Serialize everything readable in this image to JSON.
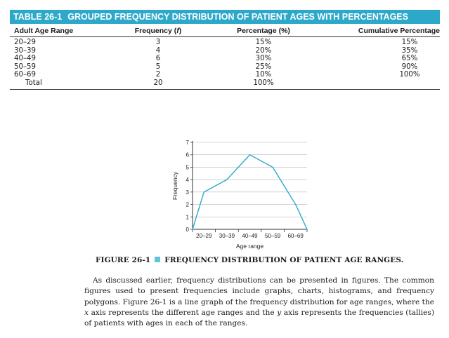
{
  "table": {
    "number": "TABLE 26-1",
    "title": "GROUPED FREQUENCY DISTRIBUTION OF PATIENT AGES WITH PERCENTAGES",
    "columns": [
      "Adult Age Range",
      "Frequency (f)",
      "Percentage (%)",
      "Cumulative Percentage"
    ],
    "rows": [
      {
        "range": "20–29",
        "freq": "3",
        "pct": "15%",
        "cum": "15%"
      },
      {
        "range": "30–39",
        "freq": "4",
        "pct": "20%",
        "cum": "35%"
      },
      {
        "range": "40–49",
        "freq": "6",
        "pct": "30%",
        "cum": "65%"
      },
      {
        "range": "50–59",
        "freq": "5",
        "pct": "25%",
        "cum": "90%"
      },
      {
        "range": "60–69",
        "freq": "2",
        "pct": "10%",
        "cum": "100%"
      }
    ],
    "total": {
      "label": "Total",
      "freq": "20",
      "pct": "100%"
    }
  },
  "chart_data": {
    "type": "line",
    "title": "",
    "xlabel": "Age range",
    "ylabel": "Frequency",
    "categories": [
      "20–29",
      "30–39",
      "40–49",
      "50–59",
      "60–69"
    ],
    "x": [
      0,
      0.5,
      1.5,
      2.5,
      3.5,
      4.5,
      5
    ],
    "values": [
      0,
      3,
      4,
      6,
      5,
      2,
      0
    ],
    "ylim": [
      0,
      7
    ],
    "yticks": [
      "0",
      "1",
      "2",
      "3",
      "4",
      "5",
      "6",
      "7"
    ],
    "grid": true,
    "line_color": "#2ea8c9"
  },
  "figure": {
    "number": "FIGURE 26-1",
    "caption": "FREQUENCY DISTRIBUTION OF PATIENT AGE RANGES."
  },
  "body_text": "As discussed earlier, frequency distributions can be presented in figures. The common figures used to present frequencies include graphs, charts, histograms, and frequency polygons. Figure 26-1 is a line graph of the frequency distribution for age ranges, where the x axis represents the different age ranges and the y axis represents the frequencies (tallies) of patients with ages in each of the ranges."
}
